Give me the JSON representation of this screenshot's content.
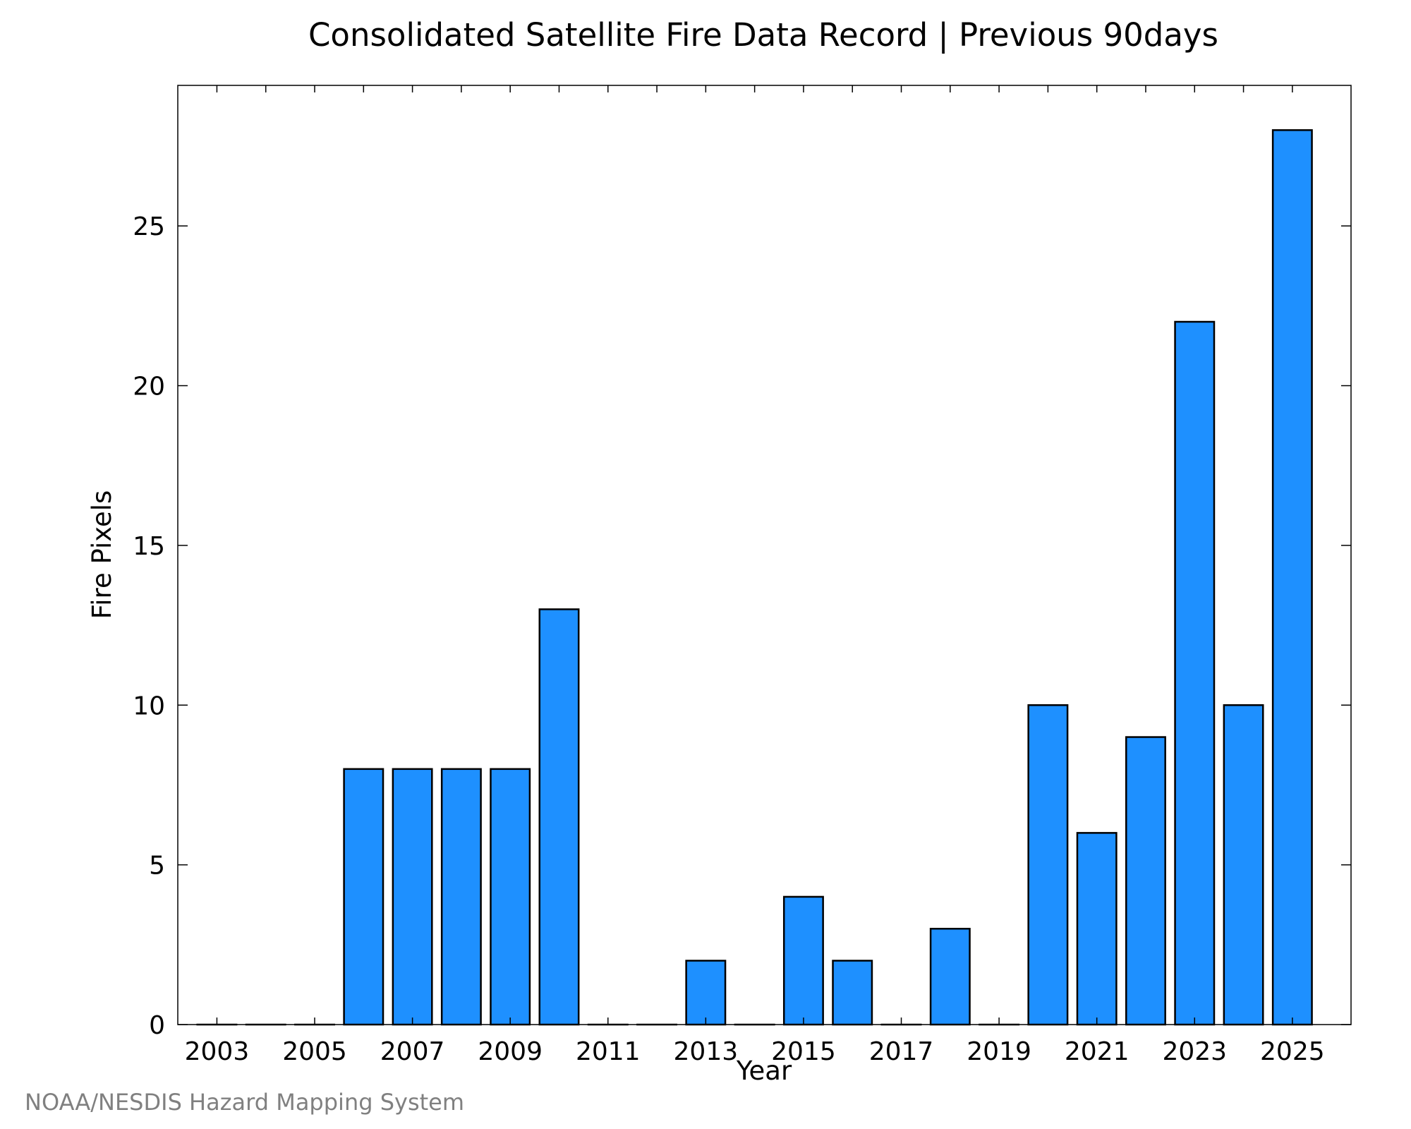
{
  "chart_data": {
    "type": "bar",
    "title": "Consolidated Satellite Fire Data Record | Previous 90days",
    "xlabel": "Year",
    "ylabel": "Fire Pixels",
    "categories": [
      2003,
      2004,
      2005,
      2006,
      2007,
      2008,
      2009,
      2010,
      2011,
      2012,
      2013,
      2014,
      2015,
      2016,
      2017,
      2018,
      2019,
      2020,
      2021,
      2022,
      2023,
      2024,
      2025
    ],
    "values": [
      0,
      0,
      0,
      8,
      8,
      8,
      8,
      13,
      0,
      0,
      2,
      0,
      4,
      2,
      0,
      3,
      0,
      10,
      6,
      9,
      22,
      10,
      28
    ],
    "xlim": [
      2002.2,
      2026.2
    ],
    "ylim": [
      0,
      29.4
    ],
    "xticks": [
      "2003",
      "2005",
      "2007",
      "2009",
      "2011",
      "2013",
      "2015",
      "2017",
      "2019",
      "2021",
      "2023",
      "2025"
    ],
    "yticks": [
      "0",
      "5",
      "10",
      "15",
      "20",
      "25"
    ],
    "bar_color": "#1e90ff",
    "edge_color": "#000000",
    "grid": false,
    "legend": "none"
  },
  "credit": "NOAA/NESDIS Hazard Mapping System"
}
